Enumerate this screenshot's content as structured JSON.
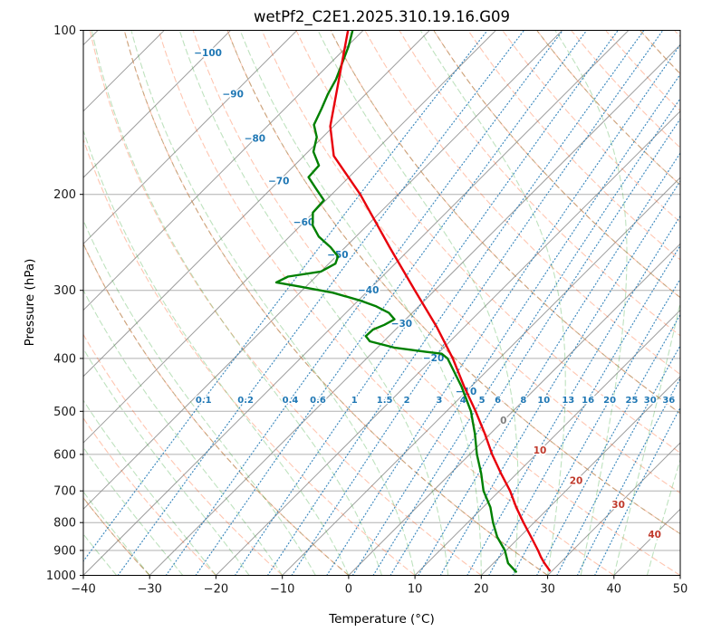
{
  "chart_data": {
    "type": "line",
    "subtype": "skew-t-log-p-sounding",
    "title": "wetPf2_C2E1.2025.310.19.16.G09",
    "xlabel": "Temperature (°C)",
    "ylabel": "Pressure (hPa)",
    "xlim": [
      -40,
      50
    ],
    "pressure_lim": [
      1000,
      100
    ],
    "skew_degC_per_decade": 82.2,
    "grid": true,
    "x_ticks": [
      -40,
      -30,
      -20,
      -10,
      0,
      10,
      20,
      30,
      40,
      50
    ],
    "x_tick_labels": [
      "−40",
      "−30",
      "−20",
      "−10",
      "0",
      "10",
      "20",
      "30",
      "40",
      "50"
    ],
    "pressure_ticks": [
      100,
      200,
      300,
      400,
      500,
      600,
      700,
      800,
      900,
      1000
    ],
    "pressure_tick_labels": [
      "100",
      "200",
      "300",
      "400",
      "500",
      "600",
      "700",
      "800",
      "900",
      "1000"
    ],
    "isotherms": {
      "t_min": -160,
      "t_max": 50,
      "step": 10,
      "color": "#8c8c8c",
      "opacity": 0.85
    },
    "isotherm_labels": {
      "color_negative": "#1f77b4",
      "color_zero": "#7f7f7f",
      "color_positive": "#c0392b",
      "items": [
        {
          "t": -100,
          "p": 110
        },
        {
          "t": -90,
          "p": 131
        },
        {
          "t": -80,
          "p": 158
        },
        {
          "t": -70,
          "p": 189
        },
        {
          "t": -60,
          "p": 225
        },
        {
          "t": -50,
          "p": 258
        },
        {
          "t": -40,
          "p": 300
        },
        {
          "t": -30,
          "p": 345
        },
        {
          "t": -20,
          "p": 399
        },
        {
          "t": -10,
          "p": 460
        },
        {
          "t": 0,
          "p": 520
        },
        {
          "t": 10,
          "p": 590
        },
        {
          "t": 20,
          "p": 670
        },
        {
          "t": 30,
          "p": 742
        },
        {
          "t": 40,
          "p": 842
        }
      ]
    },
    "dry_adiabats": {
      "theta_min": -40,
      "theta_max": 260,
      "step": 10,
      "color": "#ff4500",
      "opacity": 0.3,
      "dash": "7 3"
    },
    "dry_adiabats_secondary": {
      "theta_min": -30,
      "theta_max": 240,
      "step": 30,
      "color": "#b8986a",
      "opacity": 0.75,
      "dash": "6 3.5"
    },
    "moist_adiabats": {
      "t0_min": -40,
      "t0_max": 60,
      "step": 5,
      "color": "#2ca02c",
      "opacity": 0.3,
      "dash": "7 3"
    },
    "mixing_ratio": {
      "values": [
        0.1,
        0.2,
        0.4,
        0.6,
        1,
        1.5,
        2,
        3,
        4,
        5,
        6,
        8,
        10,
        13,
        16,
        20,
        25,
        30,
        36,
        42
      ],
      "label_values": [
        0.1,
        0.2,
        0.4,
        0.6,
        1,
        1.5,
        2,
        3,
        4,
        5,
        6,
        8,
        10,
        13,
        16,
        20,
        25,
        30,
        36
      ],
      "label_pressure": 476,
      "color": "#1f77b4",
      "opacity": 0.85
    },
    "series": [
      {
        "name": "temperature",
        "color": "#e8000b",
        "points": [
          [
            980,
            29.6
          ],
          [
            950,
            27.7
          ],
          [
            925,
            26.2
          ],
          [
            900,
            24.8
          ],
          [
            850,
            21.7
          ],
          [
            800,
            18.4
          ],
          [
            750,
            15.0
          ],
          [
            700,
            11.6
          ],
          [
            650,
            7.6
          ],
          [
            600,
            3.4
          ],
          [
            550,
            -0.8
          ],
          [
            500,
            -5.6
          ],
          [
            450,
            -11.1
          ],
          [
            400,
            -17.0
          ],
          [
            350,
            -24.2
          ],
          [
            300,
            -33.0
          ],
          [
            250,
            -43.3
          ],
          [
            200,
            -55.7
          ],
          [
            170,
            -65.5
          ],
          [
            150,
            -70.5
          ],
          [
            125,
            -75.8
          ],
          [
            100,
            -82.3
          ]
        ]
      },
      {
        "name": "dewpoint",
        "color": "#008000",
        "points": [
          [
            985,
            24.7
          ],
          [
            950,
            22.2
          ],
          [
            900,
            19.8
          ],
          [
            850,
            16.6
          ],
          [
            800,
            13.8
          ],
          [
            750,
            11.1
          ],
          [
            700,
            7.6
          ],
          [
            650,
            4.6
          ],
          [
            600,
            1.1
          ],
          [
            550,
            -2.3
          ],
          [
            500,
            -6.3
          ],
          [
            450,
            -11.5
          ],
          [
            400,
            -17.8
          ],
          [
            392,
            -19.4
          ],
          [
            389,
            -22.1
          ],
          [
            382,
            -27.5
          ],
          [
            372,
            -32.1
          ],
          [
            364,
            -33.5
          ],
          [
            354,
            -33.4
          ],
          [
            347,
            -32.4
          ],
          [
            339,
            -31.7
          ],
          [
            330,
            -33.5
          ],
          [
            321,
            -36.4
          ],
          [
            313,
            -39.8
          ],
          [
            303,
            -45.0
          ],
          [
            295,
            -51.1
          ],
          [
            290,
            -55.1
          ],
          [
            283,
            -54.2
          ],
          [
            277,
            -50.0
          ],
          [
            268,
            -49.0
          ],
          [
            260,
            -49.7
          ],
          [
            250,
            -52.2
          ],
          [
            239,
            -55.6
          ],
          [
            228,
            -58.2
          ],
          [
            216,
            -60.1
          ],
          [
            205,
            -60.3
          ],
          [
            196,
            -63.0
          ],
          [
            186,
            -66.1
          ],
          [
            177,
            -66.3
          ],
          [
            167,
            -69.2
          ],
          [
            157,
            -70.9
          ],
          [
            149,
            -73.2
          ],
          [
            139,
            -74.5
          ],
          [
            131,
            -75.7
          ],
          [
            123,
            -76.7
          ],
          [
            114,
            -78.4
          ],
          [
            107,
            -79.8
          ],
          [
            100,
            -81.6
          ]
        ]
      }
    ]
  }
}
